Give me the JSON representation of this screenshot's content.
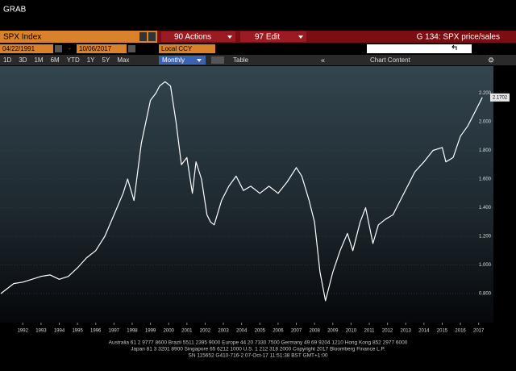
{
  "header": {
    "title": "GRAB"
  },
  "toolbar": {
    "ticker": "SPX Index",
    "actions": "90 Actions",
    "edit": "97 Edit",
    "function": "G 134: SPX price/sales",
    "start_date": "04/22/1991",
    "date_sep": "-",
    "end_date": "10/06/2017",
    "currency": "Local CCY",
    "periods": [
      "1D",
      "3D",
      "1M",
      "6M",
      "YTD",
      "1Y",
      "5Y",
      "Max"
    ],
    "frequency": "Monthly",
    "table": "Table",
    "chart_content": "Chart Content"
  },
  "chart_data": {
    "type": "line",
    "color": "#ffffff",
    "grid": true,
    "x": [
      1991.3,
      1991.5,
      1992.0,
      1992.5,
      1993.0,
      1993.5,
      1994.0,
      1994.5,
      1995.0,
      1995.5,
      1996.0,
      1996.5,
      1997.0,
      1997.5,
      1998.0,
      1998.25,
      1998.6,
      1999.0,
      1999.5,
      1999.8,
      2000.0,
      2000.3,
      2000.6,
      2000.9,
      2001.2,
      2001.5,
      2001.8,
      2002.0,
      2002.3,
      2002.6,
      2002.8,
      2003.0,
      2003.4,
      2003.8,
      2004.2,
      2004.6,
      2005.0,
      2005.5,
      2006.0,
      2006.5,
      2007.0,
      2007.5,
      2007.8,
      2008.2,
      2008.5,
      2008.8,
      2009.1,
      2009.5,
      2009.9,
      2010.3,
      2010.6,
      2011.0,
      2011.3,
      2011.7,
      2012.0,
      2012.4,
      2012.8,
      2013.2,
      2013.6,
      2014.0,
      2014.5,
      2015.0,
      2015.5,
      2015.7,
      2016.1,
      2016.5,
      2016.9,
      2017.3,
      2017.7
    ],
    "values": [
      0.8,
      0.82,
      0.87,
      0.88,
      0.9,
      0.92,
      0.93,
      0.9,
      0.92,
      0.98,
      1.05,
      1.1,
      1.2,
      1.35,
      1.5,
      1.6,
      1.45,
      1.85,
      2.15,
      2.2,
      2.25,
      2.28,
      2.25,
      2.0,
      1.7,
      1.75,
      1.5,
      1.72,
      1.6,
      1.35,
      1.3,
      1.28,
      1.45,
      1.55,
      1.62,
      1.52,
      1.55,
      1.5,
      1.55,
      1.5,
      1.58,
      1.68,
      1.62,
      1.45,
      1.3,
      0.95,
      0.75,
      0.95,
      1.1,
      1.22,
      1.1,
      1.3,
      1.4,
      1.15,
      1.28,
      1.32,
      1.35,
      1.45,
      1.55,
      1.65,
      1.72,
      1.8,
      1.82,
      1.72,
      1.75,
      1.9,
      1.97,
      2.07,
      2.17
    ],
    "last_value_label": "2.1702",
    "xlim": [
      1991.25,
      2018
    ],
    "xticks": [
      {
        "value": 1992.5,
        "label": "1992"
      },
      {
        "value": 1993.5,
        "label": "1993"
      },
      {
        "value": 1994.5,
        "label": "1994"
      },
      {
        "value": 1995.5,
        "label": "1995"
      },
      {
        "value": 1996.5,
        "label": "1996"
      },
      {
        "value": 1997.5,
        "label": "1997"
      },
      {
        "value": 1998.5,
        "label": "1998"
      },
      {
        "value": 1999.5,
        "label": "1999"
      },
      {
        "value": 2000.5,
        "label": "2000"
      },
      {
        "value": 2001.5,
        "label": "2001"
      },
      {
        "value": 2002.5,
        "label": "2002"
      },
      {
        "value": 2003.5,
        "label": "2003"
      },
      {
        "value": 2004.5,
        "label": "2004"
      },
      {
        "value": 2005.5,
        "label": "2005"
      },
      {
        "value": 2006.5,
        "label": "2006"
      },
      {
        "value": 2007.5,
        "label": "2007"
      },
      {
        "value": 2008.5,
        "label": "2008"
      },
      {
        "value": 2009.5,
        "label": "2009"
      },
      {
        "value": 2010.5,
        "label": "2010"
      },
      {
        "value": 2011.5,
        "label": "2011"
      },
      {
        "value": 2012.5,
        "label": "2012"
      },
      {
        "value": 2013.5,
        "label": "2013"
      },
      {
        "value": 2014.5,
        "label": "2014"
      },
      {
        "value": 2015.5,
        "label": "2015"
      },
      {
        "value": 2016.5,
        "label": "2016"
      },
      {
        "value": 2017.5,
        "label": "2017"
      }
    ],
    "ylim": [
      0.6,
      2.4
    ],
    "yticks": [
      {
        "value": 0.8,
        "label": "0.800"
      },
      {
        "value": 1.0,
        "label": "1.000"
      },
      {
        "value": 1.2,
        "label": "1.200"
      },
      {
        "value": 1.4,
        "label": "1.400"
      },
      {
        "value": 1.6,
        "label": "1.600"
      },
      {
        "value": 1.8,
        "label": "1.800"
      },
      {
        "value": 2.0,
        "label": "2.000"
      },
      {
        "value": 2.2,
        "label": "2.200"
      }
    ]
  },
  "footer": {
    "lines": [
      "Australia 61 2 9777 8600 Brazil 5511 2395 9000 Europe 44 20 7330 7500 Germany 49 69 9204 1210 Hong Kong 852 2977 6000",
      "Japan 81 3 3201 8900        Singapore 65 6212 1000        U.S. 1 212 318 2000        Copyright 2017 Bloomberg Finance L.P.",
      "SN 115652 G410-716-2 07-Oct-17 11:51:38 BST  GMT+1:00"
    ]
  }
}
